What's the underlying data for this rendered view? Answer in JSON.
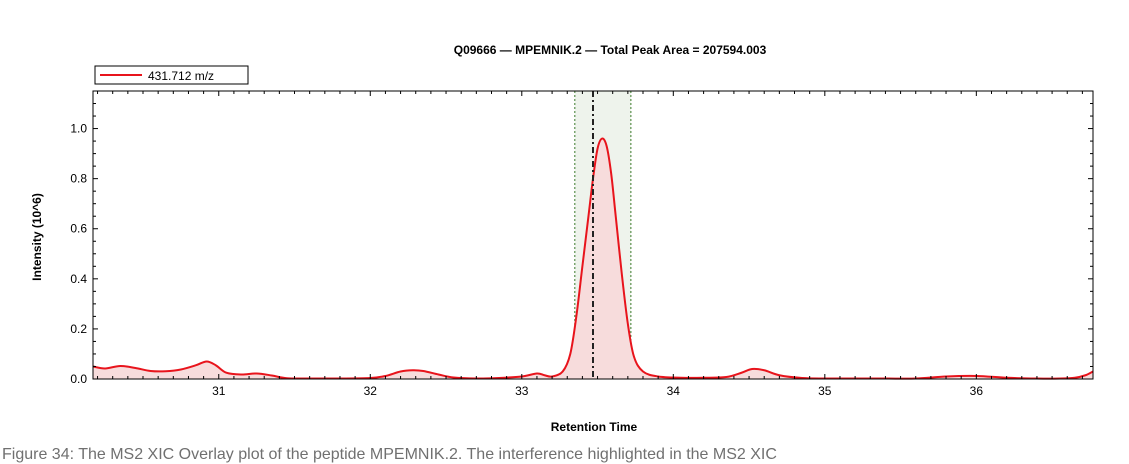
{
  "chart_data": {
    "type": "line",
    "title": "Q09666 — MPEMNIK.2 — Total Peak Area = 207594.003",
    "xlabel": "Retention Time",
    "ylabel": "Intensity (10^6)",
    "xlim": [
      30.17,
      36.77
    ],
    "ylim": [
      0.0,
      1.15
    ],
    "xticks": [
      31,
      32,
      33,
      34,
      35,
      36
    ],
    "yticks": [
      0.0,
      0.2,
      0.4,
      0.6,
      0.8,
      1.0
    ],
    "ytick_labels": [
      "0.0",
      "0.2",
      "0.4",
      "0.6",
      "0.8",
      "1.0"
    ],
    "grid": false,
    "legend_position": "top-left",
    "series": [
      {
        "name": "431.712 m/z",
        "color": "#e8141c",
        "fill": "#f7dcdc",
        "x": [
          30.17,
          30.25,
          30.35,
          30.45,
          30.55,
          30.65,
          30.75,
          30.85,
          30.92,
          30.98,
          31.05,
          31.15,
          31.25,
          31.35,
          31.45,
          31.6,
          31.8,
          32.0,
          32.1,
          32.2,
          32.28,
          32.35,
          32.45,
          32.55,
          32.7,
          32.85,
          33.0,
          33.1,
          33.15,
          33.2,
          33.27,
          33.32,
          33.36,
          33.4,
          33.44,
          33.47,
          33.5,
          33.53,
          33.56,
          33.59,
          33.62,
          33.66,
          33.7,
          33.74,
          33.8,
          33.9,
          34.05,
          34.2,
          34.35,
          34.45,
          34.52,
          34.6,
          34.7,
          34.85,
          35.0,
          35.2,
          35.4,
          35.6,
          35.8,
          36.0,
          36.2,
          36.4,
          36.55,
          36.65,
          36.72,
          36.77
        ],
        "y": [
          0.05,
          0.042,
          0.052,
          0.044,
          0.032,
          0.031,
          0.038,
          0.055,
          0.07,
          0.055,
          0.025,
          0.018,
          0.022,
          0.014,
          0.003,
          0.002,
          0.002,
          0.004,
          0.012,
          0.03,
          0.035,
          0.032,
          0.018,
          0.006,
          0.002,
          0.004,
          0.01,
          0.022,
          0.015,
          0.01,
          0.03,
          0.1,
          0.25,
          0.45,
          0.65,
          0.8,
          0.92,
          0.96,
          0.93,
          0.82,
          0.65,
          0.42,
          0.22,
          0.09,
          0.03,
          0.01,
          0.005,
          0.005,
          0.008,
          0.025,
          0.04,
          0.035,
          0.015,
          0.004,
          0.002,
          0.002,
          0.002,
          0.002,
          0.01,
          0.012,
          0.005,
          0.002,
          0.002,
          0.005,
          0.015,
          0.03
        ]
      }
    ],
    "annotations": {
      "integration_window": [
        33.35,
        33.72
      ],
      "retention_marker": 33.47
    }
  },
  "caption": "Figure 34: The MS2 XIC Overlay plot of the peptide MPEMNIK.2. The interference highlighted in the MS2 XIC"
}
